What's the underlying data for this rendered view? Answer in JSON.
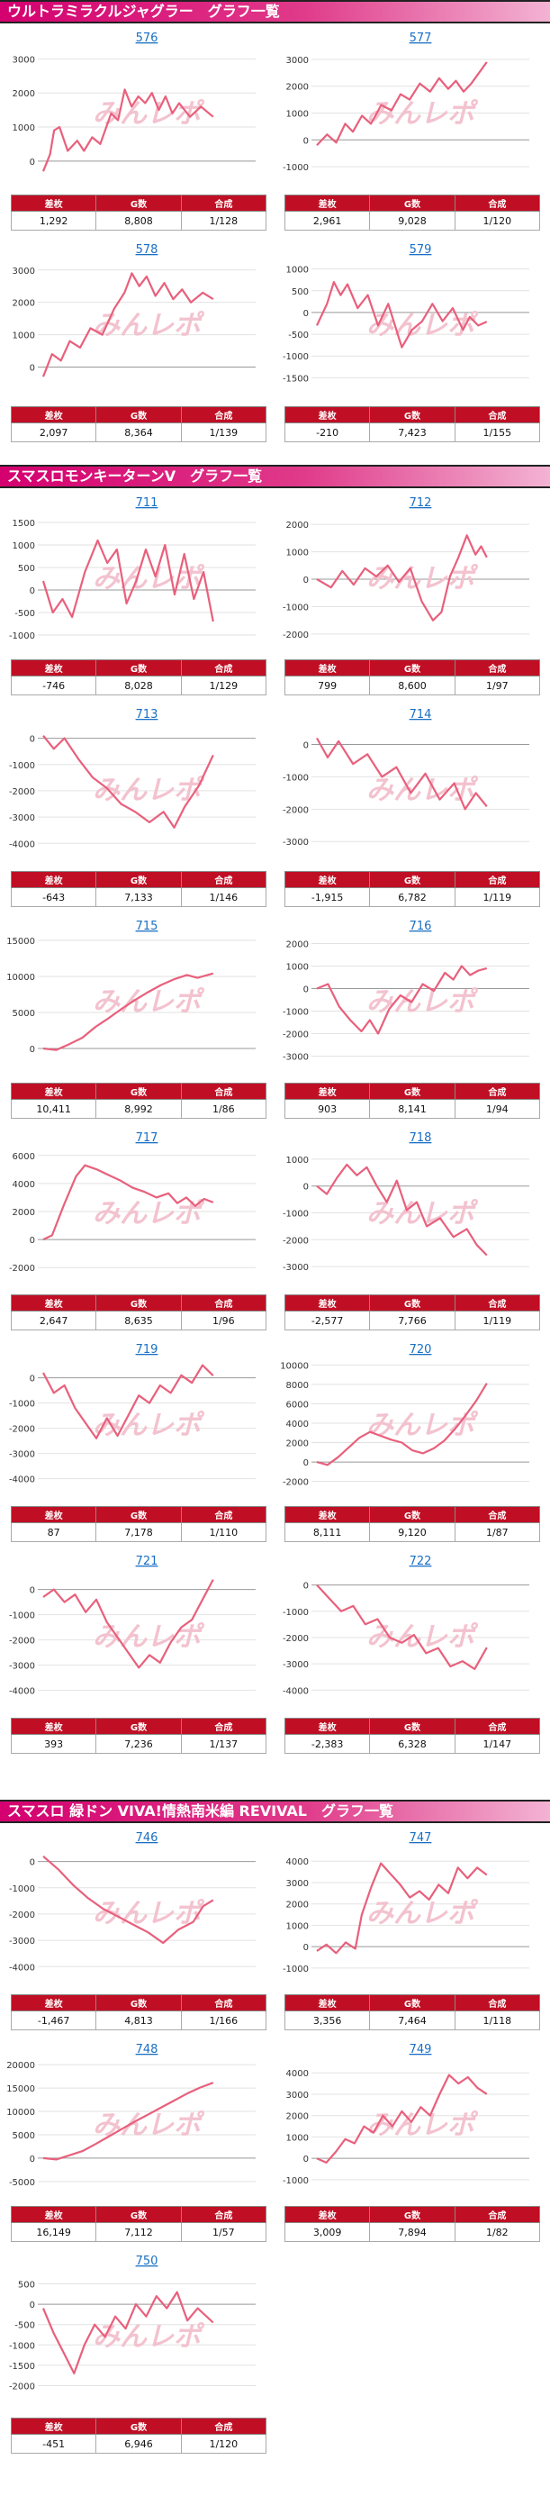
{
  "sections": [
    {
      "title": "ウルトラミラクルジャグラー　グラフ一覧",
      "headers": [
        "差枚",
        "G数",
        "合成"
      ],
      "machines": [
        {
          "no": "576",
          "diff": "1,292",
          "games": "8,808",
          "rate": "1/128",
          "ticks": [
            "0",
            "1000",
            "2000",
            "3000"
          ],
          "ylim": [
            -400,
            3300
          ],
          "series": [
            [
              0,
              -300
            ],
            [
              5,
              200
            ],
            [
              8,
              900
            ],
            [
              12,
              1000
            ],
            [
              18,
              300
            ],
            [
              25,
              600
            ],
            [
              30,
              300
            ],
            [
              36,
              700
            ],
            [
              42,
              500
            ],
            [
              50,
              1400
            ],
            [
              55,
              1200
            ],
            [
              60,
              2100
            ],
            [
              65,
              1600
            ],
            [
              70,
              1900
            ],
            [
              75,
              1700
            ],
            [
              80,
              2000
            ],
            [
              85,
              1500
            ],
            [
              90,
              1900
            ],
            [
              95,
              1400
            ],
            [
              100,
              1700
            ],
            [
              108,
              1300
            ],
            [
              116,
              1600
            ],
            [
              125,
              1300
            ]
          ]
        },
        {
          "no": "577",
          "diff": "2,961",
          "games": "9,028",
          "rate": "1/120",
          "ticks": [
            "-1000",
            "0",
            "1000",
            "2000",
            "3000"
          ],
          "ylim": [
            -1300,
            3400
          ],
          "series": [
            [
              0,
              -200
            ],
            [
              8,
              200
            ],
            [
              15,
              -100
            ],
            [
              22,
              600
            ],
            [
              28,
              300
            ],
            [
              35,
              900
            ],
            [
              42,
              600
            ],
            [
              50,
              1300
            ],
            [
              58,
              1100
            ],
            [
              65,
              1700
            ],
            [
              72,
              1500
            ],
            [
              80,
              2100
            ],
            [
              88,
              1800
            ],
            [
              95,
              2300
            ],
            [
              102,
              1900
            ],
            [
              108,
              2200
            ],
            [
              114,
              1800
            ],
            [
              120,
              2100
            ],
            [
              126,
              2500
            ],
            [
              132,
              2900
            ]
          ]
        }
      ]
    }
  ]
}
